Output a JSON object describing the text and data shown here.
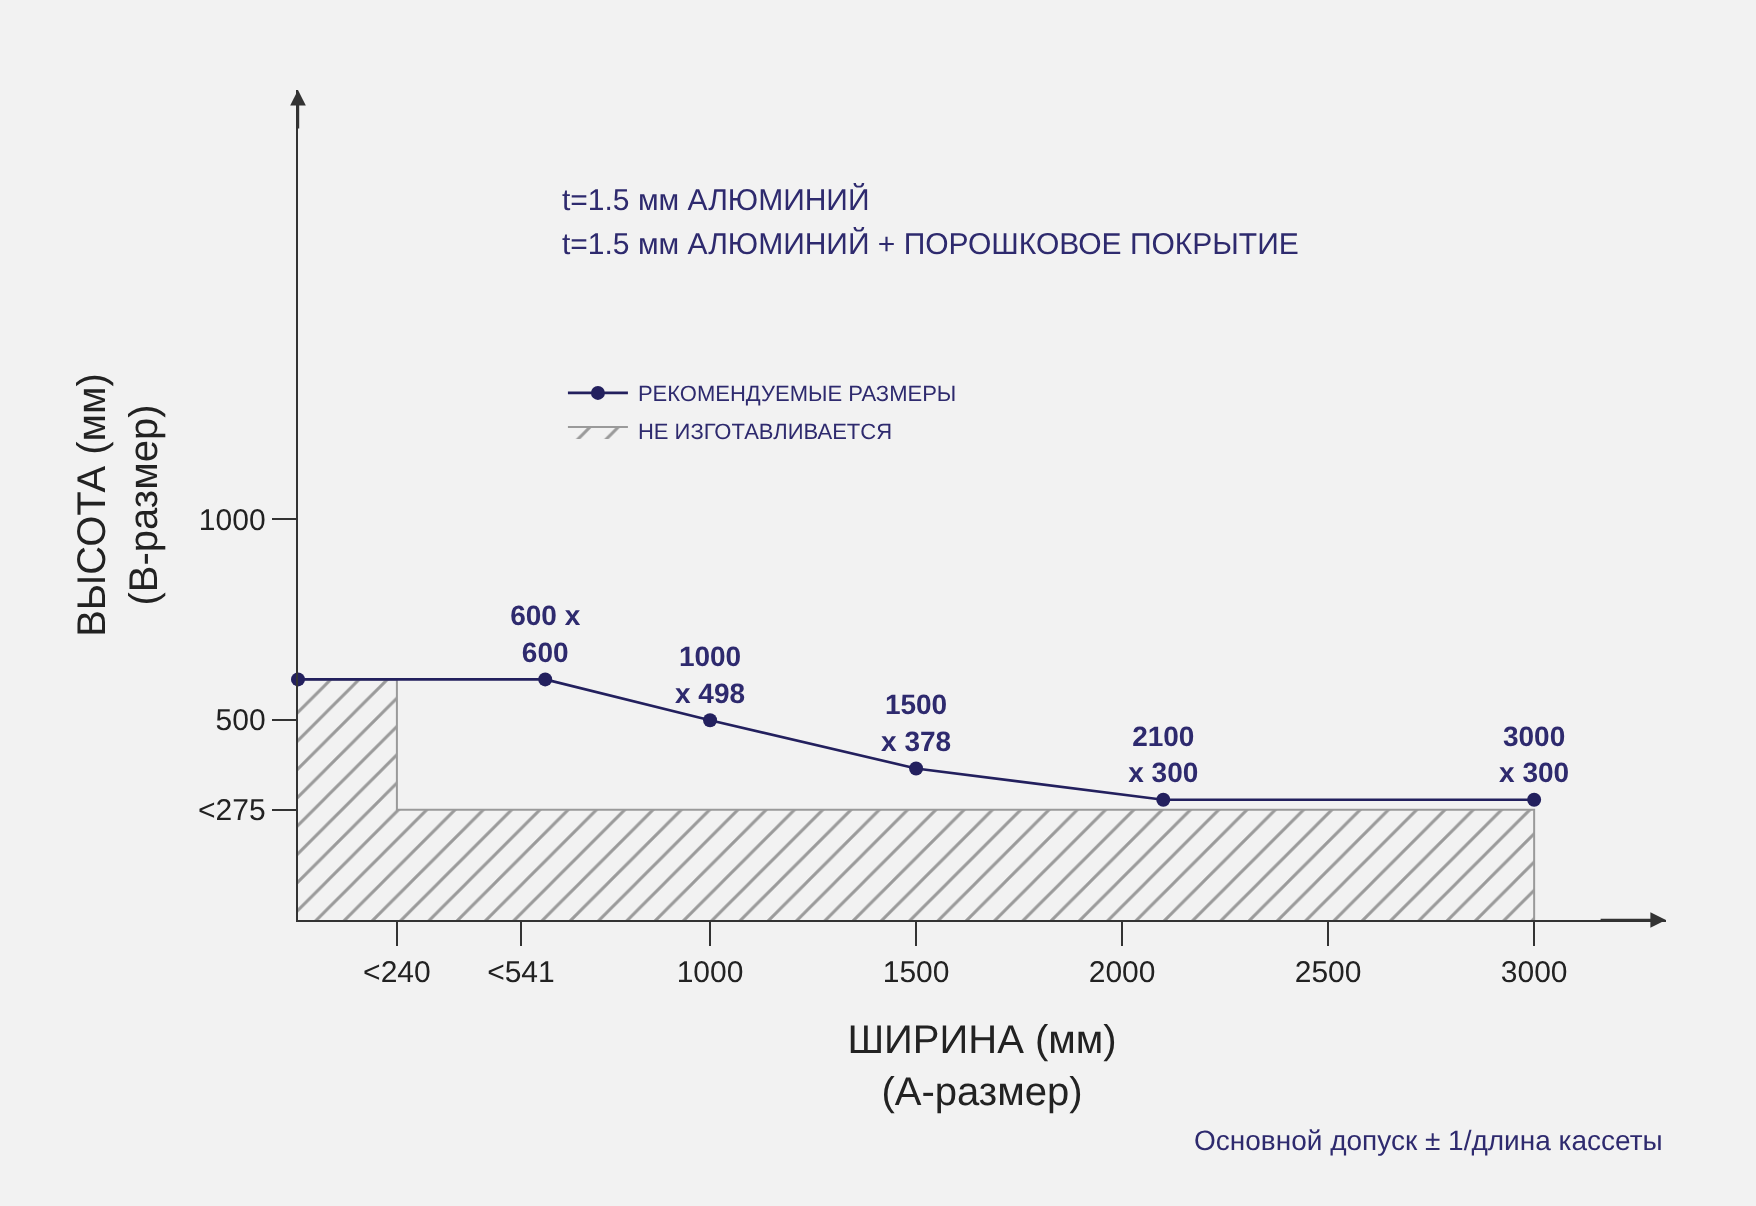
{
  "chart_data": {
    "type": "line",
    "title": "t=1.5 мм АЛЮМИНИЙ",
    "subtitle": "t=1.5 мм АЛЮМИНИЙ + ПОРОШКОВОЕ ПОКРЫТИЕ",
    "xlabel": "ШИРИНА (мм)\n(А-размер)",
    "ylabel": "ВЫСОТА (мм)\n(В-размер)",
    "annotations": [
      "Основной допуск ± 1/длина кассеты"
    ],
    "xlim": [
      0,
      3320
    ],
    "xticks": [
      {
        "value": 240,
        "label": "<240"
      },
      {
        "value": 541,
        "label": "<541"
      },
      1000,
      1500,
      2000,
      2500,
      3000
    ],
    "ylim": [
      0,
      2070
    ],
    "yticks": [
      {
        "value": 275,
        "label": "<275"
      },
      500,
      1000
    ],
    "series": [
      {
        "name": "НЕ ИЗГОТАВЛИВАЕТСЯ",
        "type": "area",
        "color": "#9a9a9a",
        "x": [
          0,
          240,
          240,
          3000,
          3000
        ],
        "values": [
          600,
          600,
          275,
          275,
          0
        ]
      },
      {
        "name": "РЕКОМЕНДУЕМЫЕ РАЗМЕРЫ",
        "color": "#23205e",
        "marker": "circle",
        "x": [
          0,
          600,
          1000,
          1500,
          2100,
          3000
        ],
        "values": [
          600,
          600,
          498,
          378,
          300,
          300
        ],
        "value_labels": [
          null,
          "600 x\n600",
          "1000\nx 498",
          "1500\nx 378",
          "2100\nx 300",
          "3000\nx 300"
        ]
      }
    ],
    "line_style": "solid",
    "legend": "top left",
    "grid": false
  }
}
